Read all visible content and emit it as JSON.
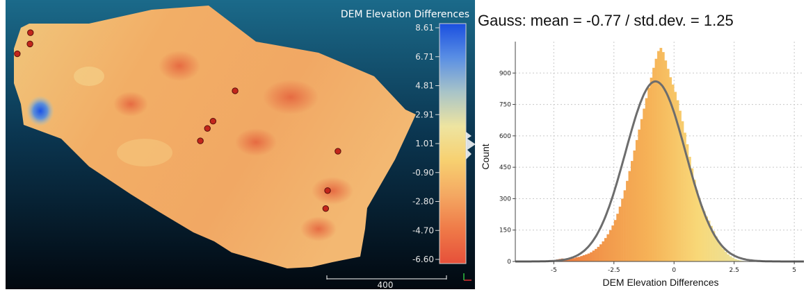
{
  "viewer": {
    "title": "DEM Elevation Differences",
    "colorbar": {
      "labels": [
        "8.61",
        "6.71",
        "4.81",
        "2.91",
        "1.01",
        "-0.90",
        "-2.80",
        "-4.70",
        "-6.60"
      ],
      "min": -6.6,
      "max": 8.61,
      "colors": [
        "#1a4fe0",
        "#5a8fe4",
        "#a8c4c8",
        "#eee4a0",
        "#f7d070",
        "#f4a862",
        "#ef7a48",
        "#e6503a"
      ]
    },
    "scale_label": "400",
    "points": [
      {
        "x": 0.053,
        "y": 0.113
      },
      {
        "x": 0.052,
        "y": 0.152
      },
      {
        "x": 0.025,
        "y": 0.186
      },
      {
        "x": 0.489,
        "y": 0.314
      },
      {
        "x": 0.442,
        "y": 0.419
      },
      {
        "x": 0.43,
        "y": 0.444
      },
      {
        "x": 0.415,
        "y": 0.487
      },
      {
        "x": 0.708,
        "y": 0.523
      },
      {
        "x": 0.686,
        "y": 0.659
      },
      {
        "x": 0.682,
        "y": 0.721
      }
    ],
    "marker_color": "#c2261c"
  },
  "chart_data": {
    "type": "histogram",
    "title": "Gauss: mean = -0.77 / std.dev. = 1.25",
    "xlabel": "DEM Elevation Differences",
    "ylabel": "Count",
    "xlim": [
      -6.6,
      5.4
    ],
    "ylim": [
      0,
      1050
    ],
    "x_ticks": [
      -5,
      -2.5,
      0,
      2.5,
      5
    ],
    "x_tick_labels": [
      "-5",
      "-2.5",
      "0",
      "2.5",
      "5"
    ],
    "y_ticks": [
      0,
      150,
      300,
      450,
      600,
      750,
      900
    ],
    "y_tick_labels": [
      "0",
      "150",
      "300",
      "450",
      "600",
      "750",
      "900"
    ],
    "grid": true,
    "gauss": {
      "mean": -0.77,
      "std": 1.25,
      "peak": 860
    },
    "bins": {
      "start": -6.6,
      "width": 0.1,
      "counts": [
        0,
        0,
        0,
        0,
        0,
        0,
        0,
        0,
        0,
        0,
        0,
        0,
        1,
        2,
        3,
        4,
        6,
        10,
        12,
        14,
        8,
        8,
        10,
        14,
        16,
        20,
        22,
        26,
        30,
        34,
        38,
        44,
        52,
        60,
        70,
        82,
        96,
        112,
        130,
        150,
        172,
        198,
        228,
        262,
        300,
        340,
        385,
        432,
        480,
        530,
        580,
        630,
        680,
        730,
        780,
        830,
        878,
        925,
        968,
        1005,
        1020,
        1000,
        960,
        920,
        880,
        845,
        810,
        770,
        720,
        670,
        615,
        560,
        500,
        445,
        390,
        340,
        300,
        265,
        240,
        215,
        195,
        170,
        145,
        120,
        98,
        78,
        60,
        46,
        34,
        25,
        18,
        12,
        8,
        5,
        3,
        2,
        1,
        1,
        0,
        0,
        0,
        0,
        0,
        0,
        0,
        0,
        0,
        0,
        0,
        0
      ]
    }
  }
}
